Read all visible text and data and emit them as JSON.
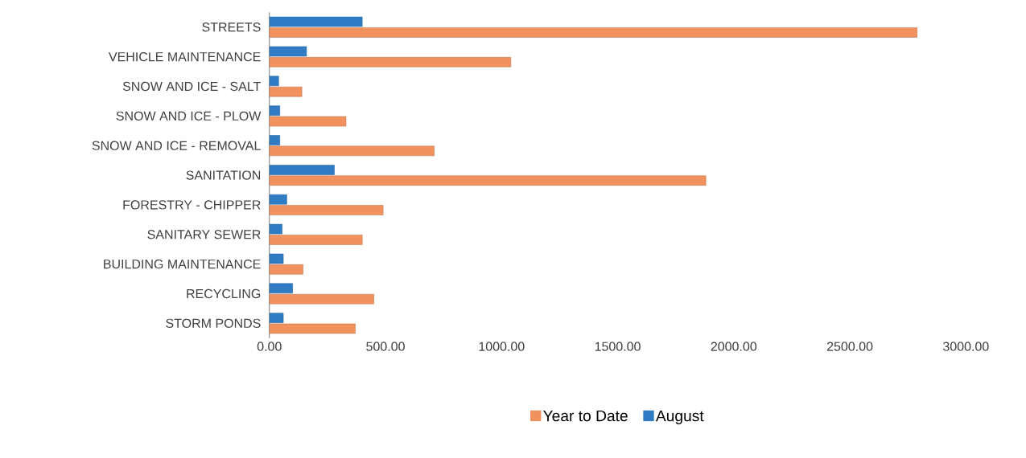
{
  "chart_data": {
    "type": "bar",
    "orientation": "horizontal",
    "categories": [
      "STREETS",
      "VEHICLE MAINTENANCE",
      "SNOW AND ICE - SALT",
      "SNOW AND ICE - PLOW",
      "SNOW AND ICE - REMOVAL",
      "SANITATION",
      "FORESTRY - CHIPPER",
      "SANITARY SEWER",
      "BUILDING MAINTENANCE",
      "RECYCLING",
      "STORM PONDS"
    ],
    "series": [
      {
        "name": "Year to Date",
        "color": "#f0915e",
        "values": [
          2790,
          1040,
          140,
          330,
          710,
          1880,
          490,
          400,
          145,
          450,
          370
        ]
      },
      {
        "name": "August",
        "color": "#2f7cc4",
        "values": [
          400,
          160,
          40,
          45,
          45,
          280,
          75,
          55,
          60,
          100,
          60
        ]
      }
    ],
    "xlim": [
      0,
      3000
    ],
    "xticks": [
      {
        "value": 0,
        "label": "0.00"
      },
      {
        "value": 500,
        "label": "500.00"
      },
      {
        "value": 1000,
        "label": "1000.00"
      },
      {
        "value": 1500,
        "label": "1500.00"
      },
      {
        "value": 2000,
        "label": "2000.00"
      },
      {
        "value": 2500,
        "label": "2500.00"
      },
      {
        "value": 3000,
        "label": "3000.00"
      }
    ],
    "legend": "bottom",
    "grid": false
  }
}
